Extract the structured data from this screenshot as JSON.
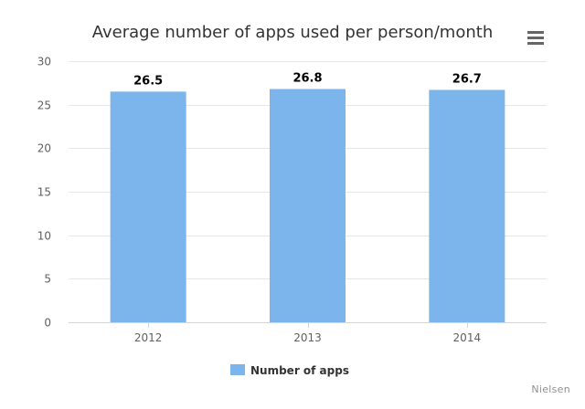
{
  "chart": {
    "title": "Average number of apps used per person/month",
    "credits": "Nielsen",
    "menu_icon": "hamburger-menu-icon"
  },
  "colors": {
    "bar": "#7cb5ec",
    "grid": "#e6e6e6",
    "axis_text": "#606060",
    "title": "#333333"
  },
  "chart_data": {
    "type": "bar",
    "categories": [
      "2012",
      "2013",
      "2014"
    ],
    "series": [
      {
        "name": "Number of apps",
        "values": [
          26.5,
          26.8,
          26.7
        ]
      }
    ],
    "title": "Average number of apps used per person/month",
    "xlabel": "",
    "ylabel": "",
    "ylim": [
      0,
      30
    ],
    "yticks": [
      0,
      5,
      10,
      15,
      20,
      25,
      30
    ],
    "data_labels": [
      "26.5",
      "26.8",
      "26.7"
    ],
    "grid": true,
    "legend": "bottom-center"
  }
}
